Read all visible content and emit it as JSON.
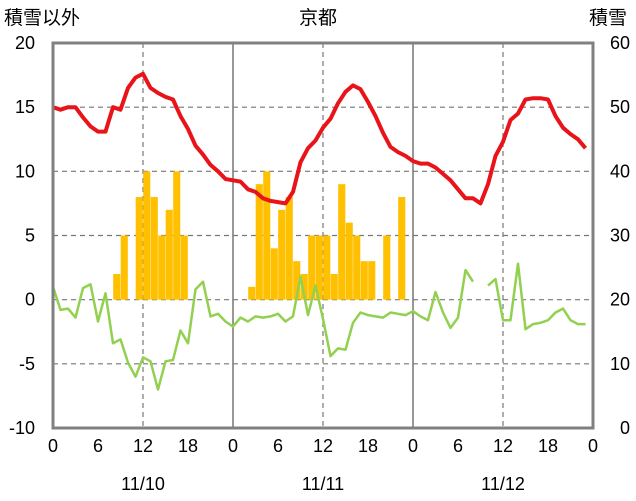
{
  "chart_data": {
    "type": "bar+line",
    "title": "京都",
    "left_axis_label": "積雪以外",
    "right_axis_label": "積雪",
    "left_ylim": [
      -10,
      20
    ],
    "left_ticks": [
      "20",
      "15",
      "10",
      "5",
      "0",
      "-5",
      "-10"
    ],
    "right_ylim": [
      0,
      60
    ],
    "right_ticks": [
      "60",
      "50",
      "40",
      "30",
      "20",
      "10",
      "0"
    ],
    "x_ticks": [
      "0",
      "6",
      "12",
      "18",
      "0",
      "6",
      "12",
      "18",
      "0",
      "6",
      "12",
      "18",
      "0"
    ],
    "date_labels": [
      "11/10",
      "11/11",
      "11/12"
    ],
    "grid": true,
    "colors": {
      "temperature": "#e8141a",
      "dewpoint": "#92d050",
      "bars": "#ffc000",
      "frame": "#808080",
      "grid": "#777777"
    },
    "series": [
      {
        "kind": "bar",
        "hours": [
          8,
          9,
          10,
          11,
          12,
          13,
          14,
          15,
          16,
          17,
          26,
          27,
          28,
          29,
          30,
          31,
          32,
          33,
          34,
          35,
          36,
          37,
          38,
          39,
          40,
          41,
          42,
          43,
          44,
          45,
          46,
          47,
          48,
          49,
          50
        ],
        "values": [
          2,
          5,
          0,
          8,
          10,
          8,
          5,
          7,
          10,
          5,
          1,
          9,
          10,
          4,
          7,
          8,
          3,
          2,
          5,
          5,
          5,
          2,
          9,
          6,
          5,
          3,
          3,
          0,
          5,
          0,
          8,
          0,
          0,
          0,
          0
        ]
      },
      {
        "kind": "line",
        "color": "red",
        "hours": [
          0,
          1,
          2,
          3,
          4,
          5,
          6,
          7,
          8,
          9,
          10,
          11,
          12,
          13,
          14,
          15,
          16,
          17,
          18,
          19,
          20,
          21,
          22,
          23,
          24,
          25,
          26,
          27,
          28,
          29,
          30,
          31,
          32,
          33,
          34,
          35,
          36,
          37,
          38,
          39,
          40,
          41,
          42,
          43,
          44,
          45,
          46,
          47,
          48,
          49,
          50,
          51,
          52,
          53,
          54,
          55,
          56,
          57,
          58,
          59,
          60,
          61,
          62,
          63,
          64,
          65,
          66,
          67,
          68,
          69,
          70,
          71
        ],
        "values": [
          15,
          14.8,
          15,
          15,
          14.2,
          13.5,
          13.1,
          13.1,
          15,
          14.8,
          16.5,
          17.3,
          17.6,
          16.5,
          16.1,
          15.8,
          15.6,
          14.3,
          13.3,
          12,
          11.3,
          10.5,
          10,
          9.4,
          9.3,
          9.2,
          8.6,
          8.4,
          7.9,
          7.7,
          7.6,
          7.5,
          8.4,
          10.7,
          11.8,
          12.4,
          13.4,
          14.1,
          15.3,
          16.2,
          16.7,
          16.4,
          15.4,
          14.3,
          13,
          11.9,
          11.5,
          11.2,
          10.8,
          10.6,
          10.6,
          10.3,
          9.8,
          9.3,
          8.6,
          7.9,
          7.9,
          7.5,
          9,
          11.2,
          12.3,
          14,
          14.5,
          15.6,
          15.7,
          15.7,
          15.6,
          14.3,
          13.4,
          12.9,
          12.5,
          11.8
        ]
      },
      {
        "kind": "line",
        "color": "green",
        "hours": [
          0,
          1,
          2,
          3,
          4,
          5,
          6,
          7,
          8,
          9,
          10,
          11,
          12,
          13,
          14,
          15,
          16,
          17,
          18,
          19,
          20,
          21,
          22,
          23,
          24,
          25,
          26,
          27,
          28,
          29,
          30,
          31,
          32,
          33,
          34,
          35,
          36,
          37,
          38,
          39,
          40,
          41,
          42,
          43,
          44,
          45,
          46,
          47,
          48,
          49,
          50,
          51,
          52,
          53,
          54,
          55,
          56,
          57,
          58,
          59,
          60,
          61,
          62,
          63,
          64,
          65,
          66,
          67,
          68,
          69,
          70,
          71
        ],
        "values": [
          1,
          -0.8,
          -0.7,
          -1.4,
          0.9,
          1.2,
          -1.7,
          0.5,
          -3.4,
          -3.1,
          -4.9,
          -6,
          -4.5,
          -4.8,
          -7,
          -4.8,
          -4.7,
          -2.4,
          -3.4,
          0.8,
          1.4,
          -1.3,
          -1.1,
          -1.7,
          -2.1,
          -1.4,
          -1.7,
          -1.3,
          -1.4,
          -1.3,
          -1.1,
          -1.7,
          -1.3,
          1.8,
          -1.2,
          1.1,
          -1.5,
          -4.4,
          -3.8,
          -3.9,
          -1.8,
          -1,
          -1.2,
          -1.3,
          -1.4,
          -1,
          -1.1,
          -1.2,
          -0.9,
          -1.3,
          -1.6,
          0.6,
          -1,
          -2.2,
          -1.4,
          2.3,
          1.4,
          null,
          1.1,
          1.6,
          -1.6,
          -1.6,
          2.8,
          -2.3,
          -1.9,
          -1.8,
          -1.6,
          -1,
          -0.7,
          -1.6,
          -1.9,
          -1.9
        ]
      }
    ]
  }
}
